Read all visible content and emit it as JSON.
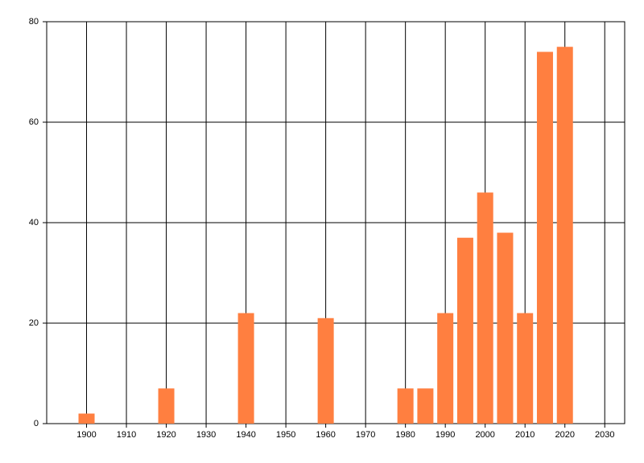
{
  "chart_data": {
    "type": "bar",
    "x": [
      1900,
      1920,
      1940,
      1960,
      1980,
      1985,
      1990,
      1995,
      2000,
      2005,
      2010,
      2015,
      2020
    ],
    "values": [
      2,
      7,
      22,
      21,
      7,
      7,
      22,
      37,
      46,
      38,
      22,
      74,
      75
    ],
    "color": "#ff7f40",
    "xlim": [
      1890,
      2035
    ],
    "xticks": [
      1900,
      1910,
      1920,
      1930,
      1940,
      1950,
      1960,
      1970,
      1980,
      1990,
      2000,
      2010,
      2020,
      2030
    ],
    "ylim": [
      0,
      80
    ],
    "yticks": [
      0,
      20,
      40,
      60,
      80
    ],
    "grid": true
  }
}
